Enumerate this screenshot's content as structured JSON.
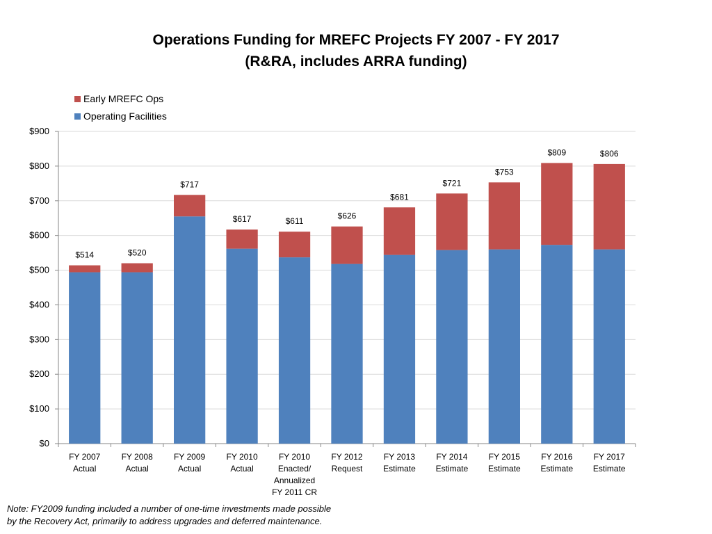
{
  "chart_data": {
    "type": "bar",
    "stacked": true,
    "title": "Operations Funding for MREFC Projects FY 2007 - FY 2017",
    "subtitle": "(R&RA, includes ARRA funding)",
    "categories": [
      "FY 2007\nActual",
      "FY 2008\nActual",
      "FY 2009\nActual",
      "FY 2010\nActual",
      "FY 2010\nEnacted/\nAnnualized\nFY 2011 CR",
      "FY 2012\nRequest",
      "FY 2013\nEstimate",
      "FY 2014\nEstimate",
      "FY 2015\nEstimate",
      "FY 2016\nEstimate",
      "FY 2017\nEstimate"
    ],
    "series": [
      {
        "name": "Operating Facilities",
        "color": "#4F81BD",
        "values": [
          494,
          494,
          655,
          562,
          537,
          518,
          544,
          558,
          560,
          573,
          560
        ]
      },
      {
        "name": "Early MREFC Ops",
        "color": "#C0504D",
        "values": [
          20,
          26,
          62,
          55,
          74,
          108,
          137,
          163,
          193,
          236,
          246
        ]
      }
    ],
    "totals": [
      514,
      520,
      717,
      617,
      611,
      626,
      681,
      721,
      753,
      809,
      806
    ],
    "total_labels": [
      "$514",
      "$520",
      "$717",
      "$617",
      "$611",
      "$626",
      "$681",
      "$721",
      "$753",
      "$809",
      "$806"
    ],
    "ylim": [
      0,
      900
    ],
    "yticks": [
      0,
      100,
      200,
      300,
      400,
      500,
      600,
      700,
      800,
      900
    ],
    "ytick_labels": [
      "$0",
      "$100",
      "$200",
      "$300",
      "$400",
      "$500",
      "$600",
      "$700",
      "$800",
      "$900"
    ],
    "grid": true,
    "legend_position": "top-left",
    "xlabel": "",
    "ylabel": ""
  },
  "footer": {
    "note_line1": "Note: FY2009 funding included a number of one-time investments made possible",
    "note_line2": "by the Recovery Act, primarily to address upgrades and deferred maintenance."
  }
}
